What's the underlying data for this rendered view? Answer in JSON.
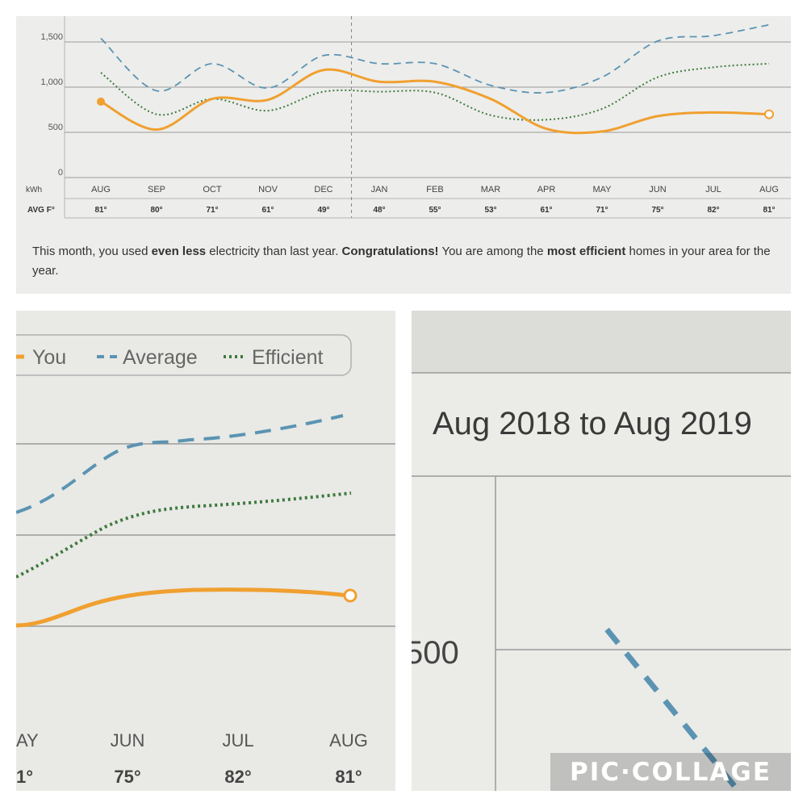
{
  "chart_data": [
    {
      "type": "line",
      "title": "",
      "xlabel": "",
      "ylabel": "kWh",
      "ylim": [
        0,
        1700
      ],
      "y_ticks": [
        "0",
        "500",
        "1,000",
        "1,500"
      ],
      "categories": [
        "AUG",
        "SEP",
        "OCT",
        "NOV",
        "DEC",
        "JAN",
        "FEB",
        "MAR",
        "APR",
        "MAY",
        "JUN",
        "JUL",
        "AUG"
      ],
      "temperature_label": "AVG F°",
      "temperatures": [
        "81°",
        "80°",
        "71°",
        "61°",
        "49°",
        "48°",
        "55°",
        "53°",
        "61°",
        "71°",
        "75°",
        "82°",
        "81°"
      ],
      "series": [
        {
          "name": "You",
          "color": "#f0a030",
          "style": "solid",
          "values": [
            840,
            530,
            870,
            860,
            1190,
            1060,
            1060,
            870,
            540,
            510,
            680,
            720,
            700
          ]
        },
        {
          "name": "Average",
          "color": "#5b94b2",
          "style": "dashed",
          "values": [
            1540,
            960,
            1260,
            990,
            1350,
            1260,
            1260,
            1020,
            940,
            1110,
            1510,
            1570,
            1690
          ]
        },
        {
          "name": "Efficient",
          "color": "#3e7a3e",
          "style": "dotted",
          "values": [
            1160,
            700,
            870,
            740,
            950,
            950,
            940,
            690,
            640,
            760,
            1110,
            1220,
            1260
          ]
        }
      ],
      "grid": true,
      "divider_between": [
        "DEC",
        "JAN"
      ]
    }
  ],
  "summary": {
    "part1": "This month, you used ",
    "bold1": "even less",
    "part2": " electricity than last year. ",
    "bold2": "Congratulations!",
    "part3": " You are among the ",
    "bold3": "most efficient",
    "part4": " homes in your area for the year."
  },
  "zoom_legend": {
    "you": "You",
    "average": "Average",
    "efficient": "Efficient"
  },
  "zoom_axis": {
    "months": [
      "AY",
      "JUN",
      "JUL",
      "AUG"
    ],
    "temps": [
      "1°",
      "75°",
      "82°",
      "81°"
    ]
  },
  "period_title": "Aug 2018 to Aug 2019",
  "zoom_tick": "500",
  "watermark": "PIC·COLLAGE",
  "colors": {
    "you": "#f0a030",
    "average": "#5b94b2",
    "efficient": "#3e7a3e",
    "grid": "#9a9a9a"
  }
}
